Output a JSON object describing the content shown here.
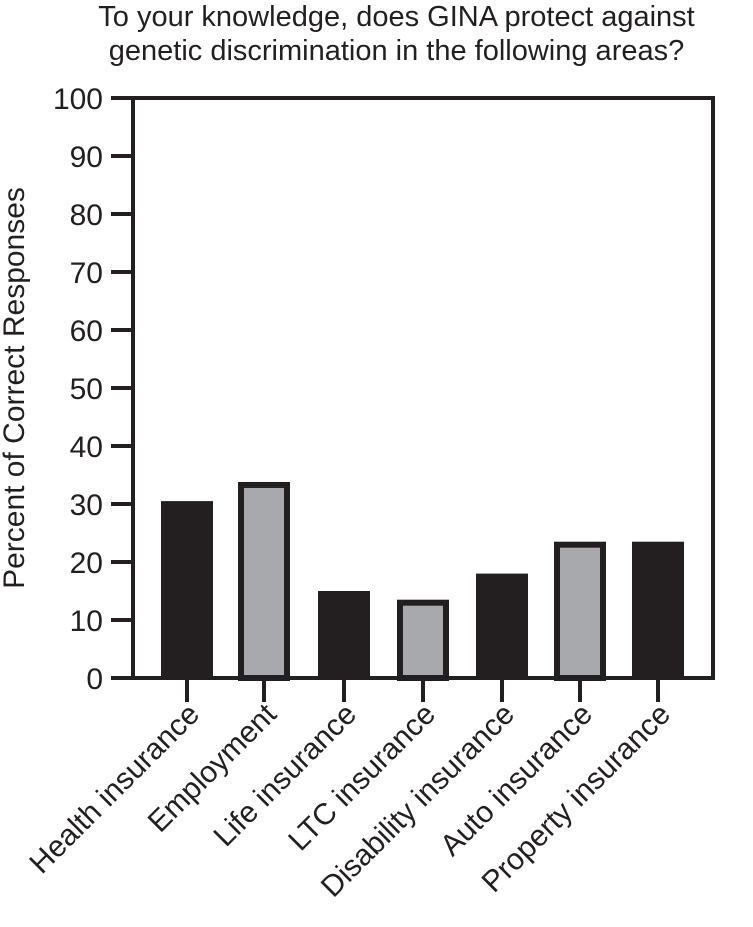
{
  "chart_data": {
    "type": "bar",
    "title_lines": [
      "To your knowledge, does GINA protect against",
      "genetic discrimination in the following areas?"
    ],
    "xlabel": "",
    "ylabel": "Percent of Correct Responses",
    "ylim": [
      0,
      100
    ],
    "yticks": [
      0,
      10,
      20,
      30,
      40,
      50,
      60,
      70,
      80,
      90,
      100
    ],
    "grid": false,
    "categories": [
      "Health insurance",
      "Employment",
      "Life insurance",
      "LTC insurance",
      "Disability insurance",
      "Auto insurance",
      "Property insurance"
    ],
    "values": [
      30.5,
      33.8,
      15,
      13.5,
      18,
      23.5,
      23.5
    ],
    "bar_fills": [
      "#231f20",
      "#a7a9ac",
      "#231f20",
      "#a7a9ac",
      "#231f20",
      "#a7a9ac",
      "#231f20"
    ],
    "colors": {
      "axis": "#231f20",
      "dark_bar": "#231f20",
      "light_bar": "#a7a9ac"
    }
  }
}
